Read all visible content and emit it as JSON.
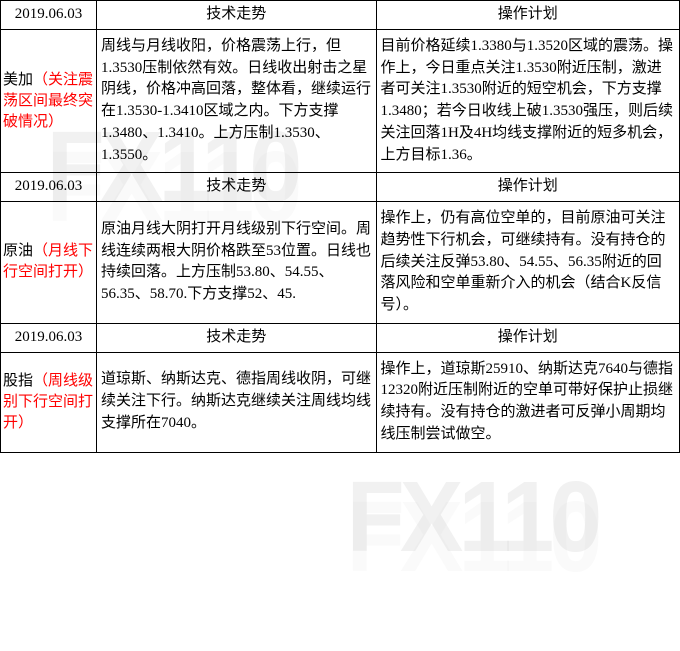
{
  "watermark_text": "FX110",
  "sections": [
    {
      "date": "2019.06.03",
      "tech_header": "技术走势",
      "plan_header": "操作计划",
      "label_black": "美加",
      "label_red": "（关注震荡区间最终突破情况）",
      "tech_content": "周线与月线收阳，价格震荡上行，但1.3530压制依然有效。日线收出射击之星阴线，价格冲高回落，整体看，继续运行在1.3530-1.3410区域之内。下方支撑1.3480、1.3410。上方压制1.3530、1.3550。",
      "plan_content": "目前价格延续1.3380与1.3520区域的震荡。操作上，今日重点关注1.3530附近压制，激进者可关注1.3530附近的短空机会，下方支撑1.3480；若今日收线上破1.3530强压，则后续关注回落1H及4H均线支撑附近的短多机会，上方目标1.36。"
    },
    {
      "date": "2019.06.03",
      "tech_header": "技术走势",
      "plan_header": "操作计划",
      "label_black": "原油",
      "label_red": "（月线下行空间打开）",
      "tech_content": "原油月线大阴打开月线级别下行空间。周线连续两根大阴价格跌至53位置。日线也持续回落。上方压制53.80、54.55、56.35、58.70.下方支撑52、45.",
      "plan_content": "操作上，仍有高位空单的，目前原油可关注趋势性下行机会，可继续持有。没有持仓的后续关注反弹53.80、54.55、56.35附近的回落风险和空单重新介入的机会（结合K反信号）。"
    },
    {
      "date": "2019.06.03",
      "tech_header": "技术走势",
      "plan_header": "操作计划",
      "label_black": "股指",
      "label_red": "（周线级别下行空间打开）",
      "tech_content": "道琼斯、纳斯达克、德指周线收阴，可继续关注下行。纳斯达克继续关注周线均线支撑所在7040。",
      "plan_content": "操作上，道琼斯25910、纳斯达克7640与德指12320附近压制附近的空单可带好保护止损继续持有。没有持仓的激进者可反弹小周期均线压制尝试做空。"
    }
  ],
  "colors": {
    "border": "#000000",
    "text_black": "#000000",
    "text_red": "#ff0000",
    "background": "#ffffff",
    "watermark": "rgba(200,200,200,0.25)"
  }
}
